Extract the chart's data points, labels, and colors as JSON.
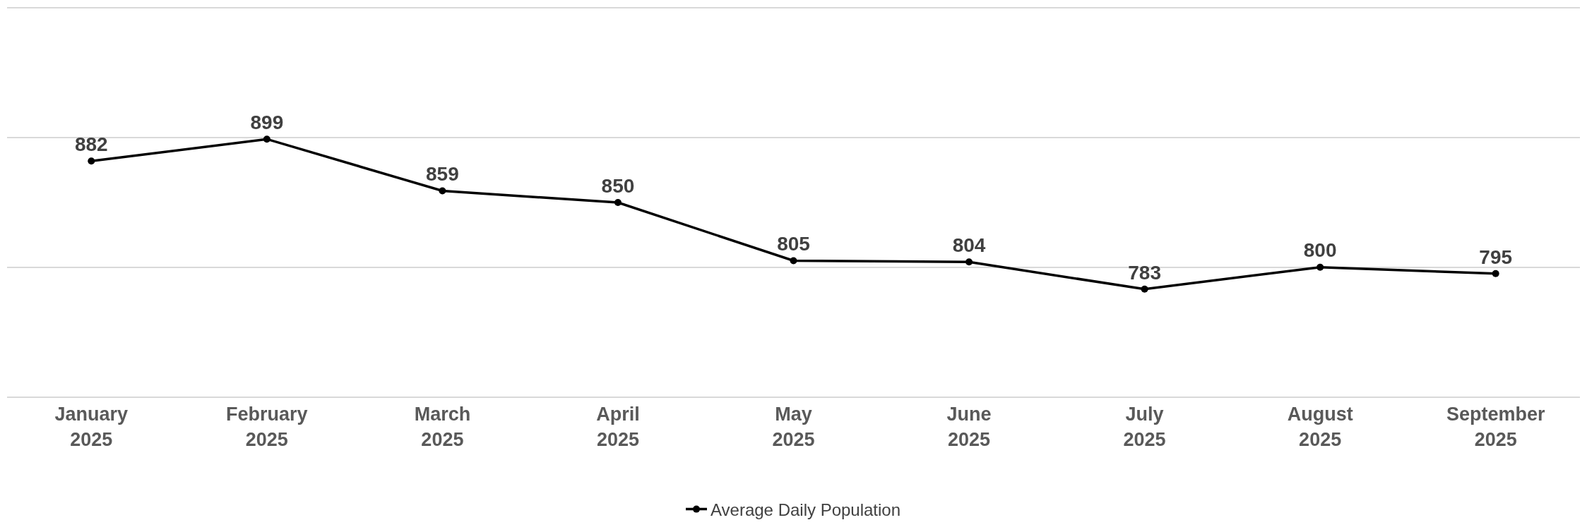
{
  "chart_data": {
    "type": "line",
    "categories": [
      "January\n2025",
      "February\n2025",
      "March\n2025",
      "April\n2025",
      "May\n2025",
      "June\n2025",
      "July\n2025",
      "August\n2025",
      "September\n2025"
    ],
    "series": [
      {
        "name": "Average Daily Population",
        "color": "#000000",
        "values": [
          882,
          899,
          859,
          850,
          805,
          804,
          783,
          800,
          795
        ]
      }
    ],
    "ylim": [
      700,
      1000
    ],
    "yticks": [
      {
        "value": 800,
        "label": null
      },
      {
        "value": 900,
        "label": null
      }
    ],
    "tick_labels": "x",
    "grid": "y",
    "legend": "bottom",
    "marker": "circle",
    "line_style": "solid",
    "data_labels": true
  }
}
